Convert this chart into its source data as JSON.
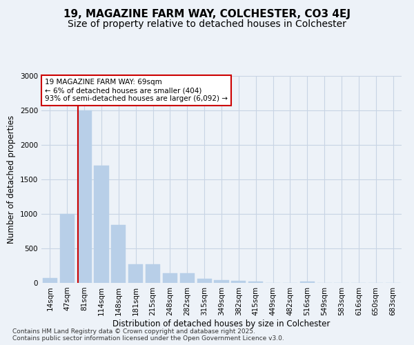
{
  "title_line1": "19, MAGAZINE FARM WAY, COLCHESTER, CO3 4EJ",
  "title_line2": "Size of property relative to detached houses in Colchester",
  "xlabel": "Distribution of detached houses by size in Colchester",
  "ylabel": "Number of detached properties",
  "annotation_line1": "19 MAGAZINE FARM WAY: 69sqm",
  "annotation_line2": "← 6% of detached houses are smaller (404)",
  "annotation_line3": "93% of semi-detached houses are larger (6,092) →",
  "footer_line1": "Contains HM Land Registry data © Crown copyright and database right 2025.",
  "footer_line2": "Contains public sector information licensed under the Open Government Licence v3.0.",
  "categories": [
    "14sqm",
    "47sqm",
    "81sqm",
    "114sqm",
    "148sqm",
    "181sqm",
    "215sqm",
    "248sqm",
    "282sqm",
    "315sqm",
    "349sqm",
    "382sqm",
    "415sqm",
    "449sqm",
    "482sqm",
    "516sqm",
    "549sqm",
    "583sqm",
    "616sqm",
    "650sqm",
    "683sqm"
  ],
  "values": [
    70,
    1000,
    2500,
    1700,
    840,
    270,
    270,
    140,
    140,
    65,
    45,
    35,
    25,
    5,
    3,
    25,
    2,
    1,
    1,
    1,
    1
  ],
  "bar_color": "#b8cfe8",
  "bar_edge_color": "#b8cfe8",
  "vline_color": "#cc0000",
  "vline_position": 1.65,
  "ylim_max": 3000,
  "yticks": [
    0,
    500,
    1000,
    1500,
    2000,
    2500,
    3000
  ],
  "grid_color": "#c8d4e4",
  "background_color": "#edf2f8",
  "title_fontsize": 11,
  "subtitle_fontsize": 10,
  "axis_label_fontsize": 8.5,
  "tick_fontsize": 7.5,
  "annotation_fontsize": 7.5,
  "footer_fontsize": 6.5
}
